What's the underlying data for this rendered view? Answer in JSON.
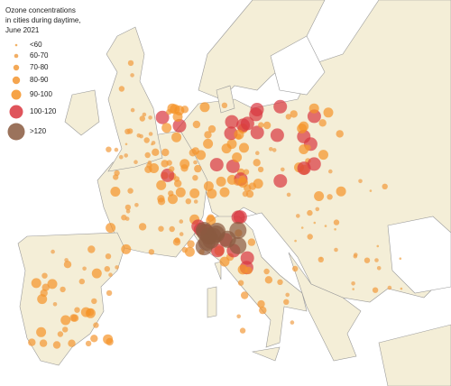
{
  "legend": {
    "title_lines": [
      "Ozone concentrations",
      "in cities during daytime,",
      "June 2021"
    ],
    "items": [
      {
        "label": "<60",
        "color": "#f0a54a"
      },
      {
        "label": "60-70",
        "color": "#f0a04a"
      },
      {
        "label": "70-80",
        "color": "#f29a3a"
      },
      {
        "label": "80-90",
        "color": "#f39530"
      },
      {
        "label": "90-100",
        "color": "#f59326"
      },
      {
        "label": "100-120",
        "color": "#d9363e"
      },
      {
        "label": ">120",
        "color": "#8a5a40"
      }
    ]
  }
}
